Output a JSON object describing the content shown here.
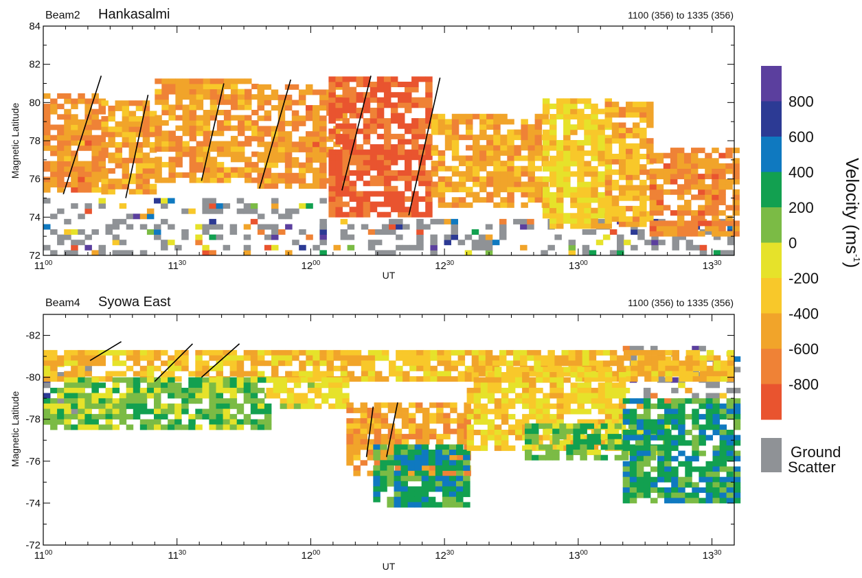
{
  "figure": {
    "colorbar_title": "Velocity (ms",
    "colorbar_title_sup": "-1",
    "colorbar_title_end": ")",
    "colorbar_ticks": [
      "800",
      "600",
      "400",
      "200",
      "0",
      "-200",
      "-400",
      "-600",
      "-800"
    ],
    "ground_scatter_label_1": "Ground",
    "ground_scatter_label_2": "Scatter"
  },
  "chart_data": [
    {
      "type": "heatmap",
      "beam": "Beam2",
      "station": "Hankasalmi",
      "time_range": "1100 (356) to 1335 (356)",
      "xlabel": "UT",
      "ylabel": "Magnetic Latitude",
      "xlim_minutes_after_1100": [
        0,
        155
      ],
      "ylim": [
        72,
        84
      ],
      "y_ticks": [
        72,
        74,
        76,
        78,
        80,
        82,
        84
      ],
      "x_ticks": [
        {
          "h": "11",
          "m": "00"
        },
        {
          "h": "11",
          "m": "30"
        },
        {
          "h": "12",
          "m": "00"
        },
        {
          "h": "12",
          "m": "30"
        },
        {
          "h": "13",
          "m": "00"
        },
        {
          "h": "13",
          "m": "30"
        }
      ],
      "x_tick_minutes": [
        0,
        30,
        60,
        90,
        120,
        150
      ],
      "fit_lines": [
        {
          "t0": 4.5,
          "lat0": 75.2,
          "t1": 13,
          "lat1": 81.4
        },
        {
          "t0": 18.5,
          "lat0": 75.0,
          "t1": 23.5,
          "lat1": 80.4
        },
        {
          "t0": 35.5,
          "lat0": 75.9,
          "t1": 40.5,
          "lat1": 81.0
        },
        {
          "t0": 48.5,
          "lat0": 75.5,
          "t1": 55.5,
          "lat1": 81.2
        },
        {
          "t0": 67,
          "lat0": 75.4,
          "t1": 73.5,
          "lat1": 81.4
        },
        {
          "t0": 82,
          "lat0": 74.1,
          "t1": 89,
          "lat1": 81.3
        }
      ],
      "regions": [
        {
          "t0": 0,
          "t1": 13,
          "lat0": 75.3,
          "lat1": 80.3,
          "v": -600
        },
        {
          "t0": 13,
          "t1": 25,
          "lat0": 75.2,
          "lat1": 80.1,
          "v": -500
        },
        {
          "t0": 25,
          "t1": 48,
          "lat0": 75.8,
          "lat1": 81.0,
          "v": -550
        },
        {
          "t0": 48,
          "t1": 67,
          "lat0": 75.5,
          "lat1": 80.8,
          "v": -600
        },
        {
          "t0": 64,
          "t1": 87,
          "lat0": 74.0,
          "lat1": 81.2,
          "v": -850
        },
        {
          "t0": 87,
          "t1": 112,
          "lat0": 74.5,
          "lat1": 79.2,
          "v": -480
        },
        {
          "t0": 112,
          "t1": 126,
          "lat0": 73.4,
          "lat1": 80.0,
          "v": -250
        },
        {
          "t0": 126,
          "t1": 136,
          "lat0": 73.5,
          "lat1": 79.8,
          "v": -430
        },
        {
          "t0": 136,
          "t1": 155,
          "lat0": 73.0,
          "lat1": 77.6,
          "v": -620
        }
      ],
      "scatter_regions": [
        {
          "t0": 0,
          "t1": 62,
          "lat0": 72.0,
          "lat1": 74.8,
          "v": 0
        },
        {
          "t0": 62,
          "t1": 155,
          "lat0": 72.0,
          "lat1": 73.8,
          "v": 0
        }
      ]
    },
    {
      "type": "heatmap",
      "beam": "Beam4",
      "station": "Syowa East",
      "time_range": "1100 (356) to 1335 (356)",
      "xlabel": "UT",
      "ylabel": "Magnetic Latitude",
      "xlim_minutes_after_1100": [
        0,
        155
      ],
      "ylim": [
        -72,
        -83
      ],
      "y_ticks": [
        -72,
        -74,
        -76,
        -78,
        -80,
        -82
      ],
      "x_ticks": [
        {
          "h": "11",
          "m": "00"
        },
        {
          "h": "11",
          "m": "30"
        },
        {
          "h": "12",
          "m": "00"
        },
        {
          "h": "12",
          "m": "30"
        },
        {
          "h": "13",
          "m": "00"
        },
        {
          "h": "13",
          "m": "30"
        }
      ],
      "x_tick_minutes": [
        0,
        30,
        60,
        90,
        120,
        150
      ],
      "fit_lines": [
        {
          "t0": 10.5,
          "lat0": -80.8,
          "t1": 17.5,
          "lat1": -81.7
        },
        {
          "t0": 25,
          "lat0": -79.8,
          "t1": 33.5,
          "lat1": -81.6
        },
        {
          "t0": 35.5,
          "lat0": -80.0,
          "t1": 44,
          "lat1": -81.6
        },
        {
          "t0": 72.5,
          "lat0": -76.2,
          "t1": 74,
          "lat1": -78.6
        },
        {
          "t0": 77,
          "lat0": -76.2,
          "t1": 79.5,
          "lat1": -78.8
        }
      ],
      "regions": [
        {
          "t0": 0,
          "t1": 155,
          "lat0": -80.0,
          "lat1": -81.3,
          "v": -350
        },
        {
          "t0": 0,
          "t1": 50,
          "lat0": -77.6,
          "lat1": -80.0,
          "v": 100
        },
        {
          "t0": 50,
          "t1": 68,
          "lat0": -78.5,
          "lat1": -80.0,
          "v": -150
        },
        {
          "t0": 68,
          "t1": 95,
          "lat0": -75.5,
          "lat1": -78.8,
          "v": -550
        },
        {
          "t0": 74,
          "t1": 95,
          "lat0": -73.8,
          "lat1": -76.8,
          "v": 300
        },
        {
          "t0": 95,
          "t1": 130,
          "lat0": -76.5,
          "lat1": -80.5,
          "v": -250
        },
        {
          "t0": 108,
          "t1": 140,
          "lat0": -76.2,
          "lat1": -77.8,
          "v": 150
        },
        {
          "t0": 130,
          "t1": 155,
          "lat0": -74.0,
          "lat1": -79.0,
          "v": 300
        }
      ],
      "scatter_regions": [
        {
          "t0": 0,
          "t1": 10,
          "lat0": -78.0,
          "lat1": -81.0,
          "v": 0
        },
        {
          "t0": 130,
          "t1": 155,
          "lat0": -78.5,
          "lat1": -81.5,
          "v": 0
        }
      ]
    }
  ]
}
